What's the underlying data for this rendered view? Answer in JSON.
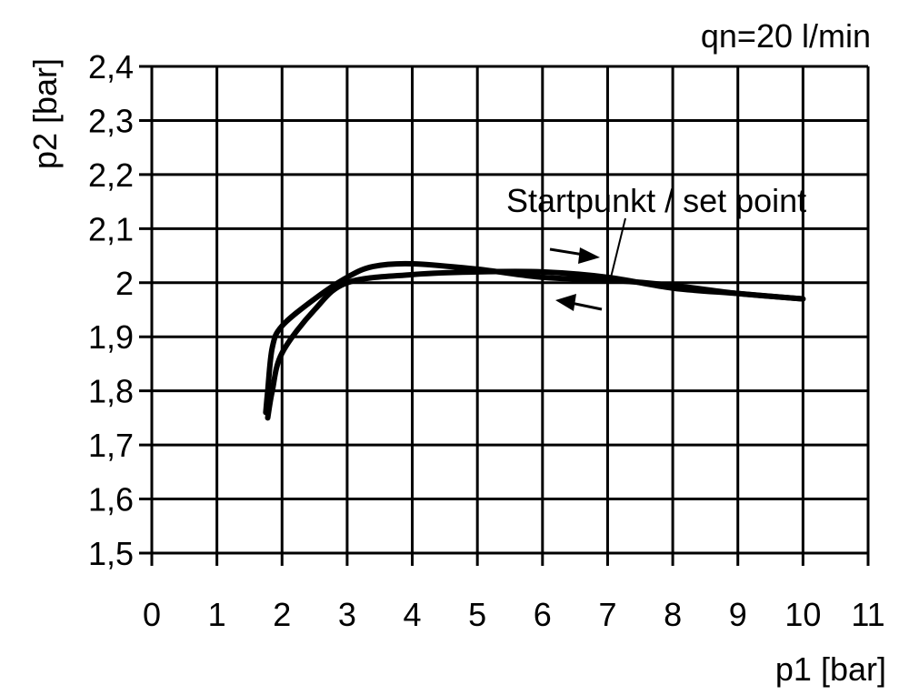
{
  "chart_data": {
    "type": "line",
    "title": "qn=20 l/min",
    "xlabel": "p1 [bar]",
    "ylabel": "p2 [bar]",
    "xlim": [
      0,
      11
    ],
    "ylim": [
      1.5,
      2.4
    ],
    "grid": true,
    "x_ticks": [
      "0",
      "1",
      "2",
      "3",
      "4",
      "5",
      "6",
      "7",
      "8",
      "9",
      "10",
      "11"
    ],
    "y_ticks": [
      "1,5",
      "1,6",
      "1,7",
      "1,8",
      "1,9",
      "2",
      "2,1",
      "2,2",
      "2,3",
      "2,4"
    ],
    "annotation": "Startpunkt / set point",
    "series": [
      {
        "direction": "increasing",
        "points": [
          [
            1.78,
            1.75
          ],
          [
            1.85,
            1.8
          ],
          [
            2.0,
            1.87
          ],
          [
            2.5,
            1.95
          ],
          [
            3.0,
            2.0
          ],
          [
            4.0,
            2.015
          ],
          [
            5.0,
            2.02
          ],
          [
            6.0,
            2.02
          ],
          [
            7.0,
            2.01
          ],
          [
            8.0,
            1.99
          ],
          [
            9.0,
            1.98
          ],
          [
            10.0,
            1.97
          ]
        ]
      },
      {
        "direction": "decreasing",
        "points": [
          [
            10.0,
            1.97
          ],
          [
            9.0,
            1.98
          ],
          [
            8.0,
            1.995
          ],
          [
            7.0,
            2.005
          ],
          [
            6.0,
            2.01
          ],
          [
            5.0,
            2.025
          ],
          [
            4.0,
            2.035
          ],
          [
            3.4,
            2.03
          ],
          [
            3.0,
            2.01
          ],
          [
            2.5,
            1.97
          ],
          [
            2.0,
            1.92
          ],
          [
            1.85,
            1.88
          ],
          [
            1.78,
            1.8
          ],
          [
            1.75,
            1.76
          ]
        ]
      }
    ],
    "color": "#000000"
  }
}
